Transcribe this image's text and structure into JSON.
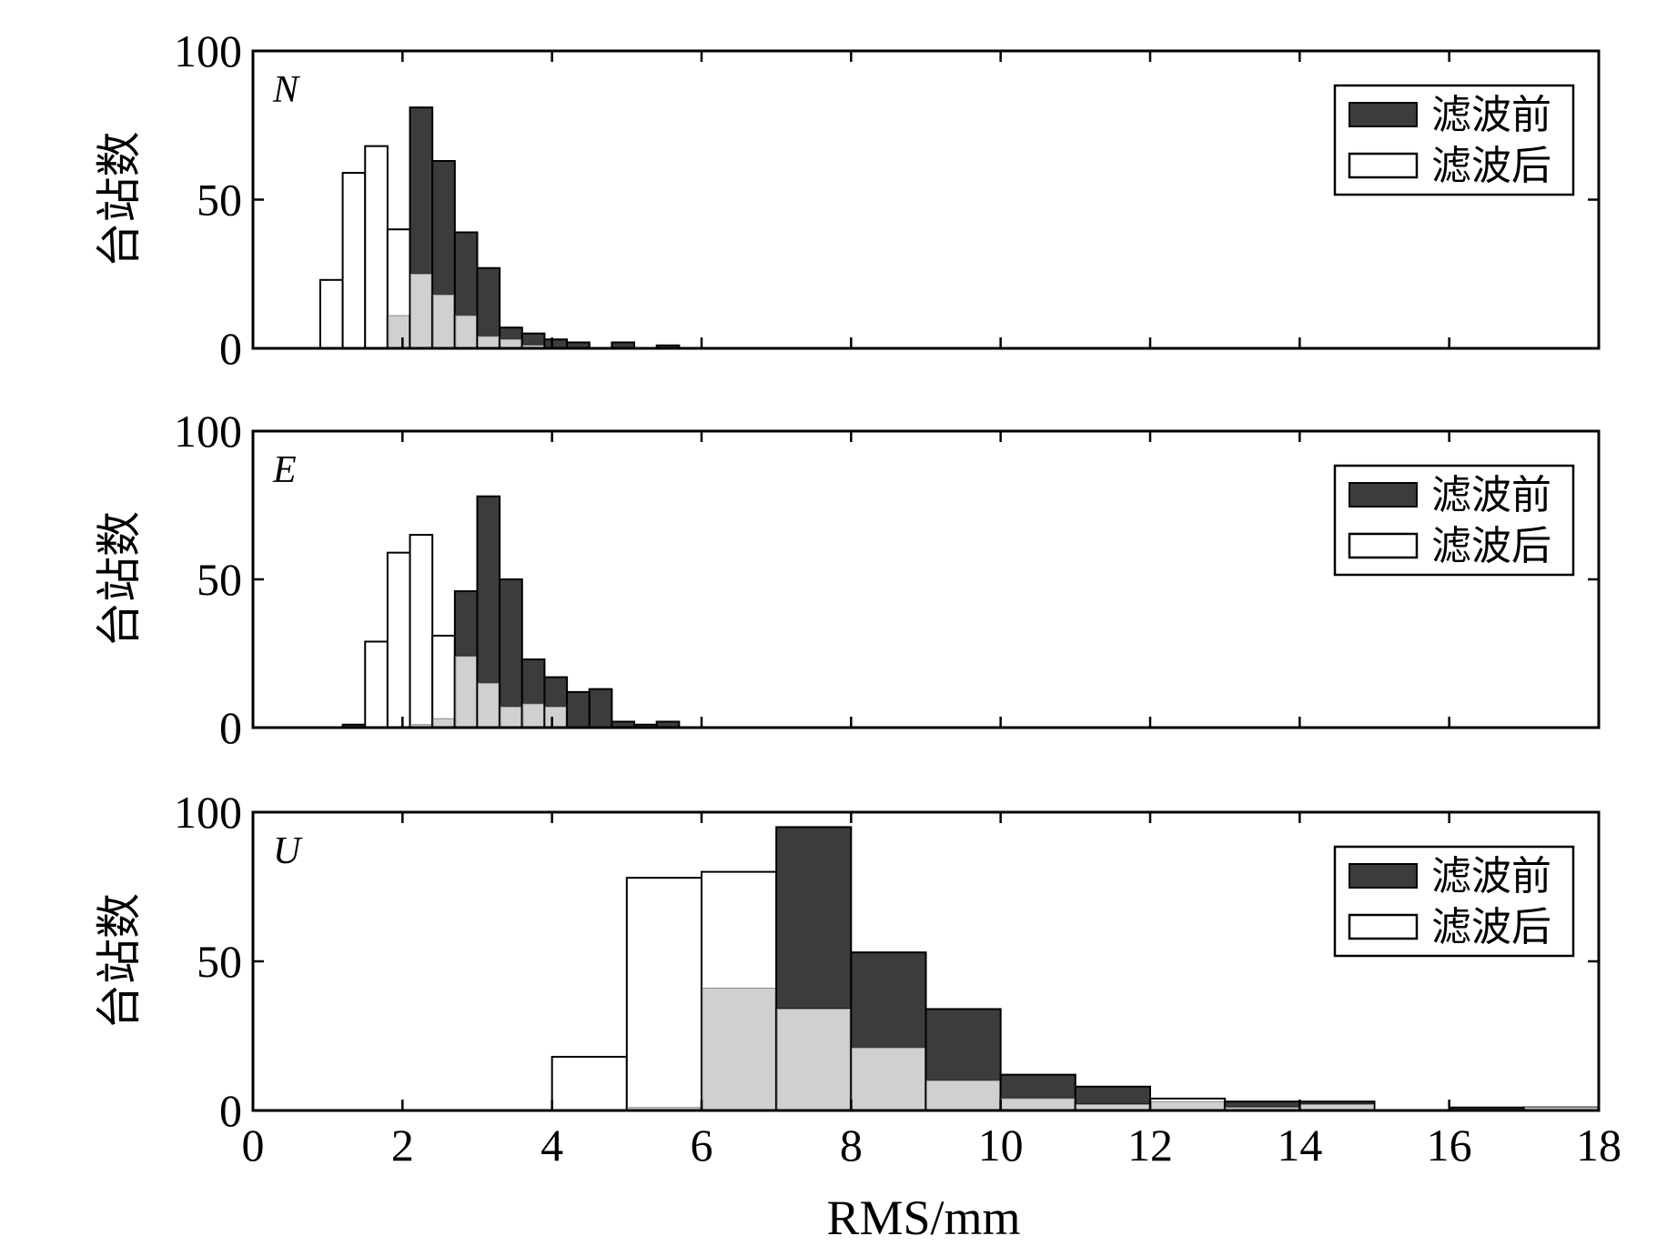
{
  "colors": {
    "before_fill": "#3c3c3c",
    "after_fill": "#ffffff",
    "overlap_fill": "#d0d0d0",
    "edge": "#000000"
  },
  "xlabel": "RMS/mm",
  "legend": {
    "before": "滤波前",
    "after": "滤波后",
    "placement": "top-right"
  },
  "chart_data": [
    {
      "type": "bar",
      "panel": "N",
      "ylabel": "台站数",
      "xlim": [
        0,
        18
      ],
      "ylim": [
        0,
        100
      ],
      "x_ticks": [
        0,
        2,
        4,
        6,
        8,
        10,
        12,
        14,
        16,
        18
      ],
      "y_ticks": [
        0,
        50,
        100
      ],
      "bin_width": 0.3,
      "bin_starts": [
        0.9,
        1.2,
        1.5,
        1.8,
        2.1,
        2.4,
        2.7,
        3.0,
        3.3,
        3.6,
        3.9,
        4.2,
        4.5,
        4.8,
        5.1,
        5.4,
        5.7
      ],
      "series": [
        {
          "name": "滤波前",
          "values": [
            0,
            0,
            0,
            11,
            81,
            63,
            39,
            27,
            7,
            5,
            3,
            2,
            0,
            2,
            0,
            1,
            0
          ]
        },
        {
          "name": "滤波后",
          "values": [
            23,
            59,
            68,
            40,
            25,
            18,
            11,
            4,
            3,
            1,
            0,
            0,
            0,
            0,
            0,
            0,
            0
          ]
        }
      ]
    },
    {
      "type": "bar",
      "panel": "E",
      "ylabel": "台站数",
      "xlim": [
        0,
        18
      ],
      "ylim": [
        0,
        100
      ],
      "x_ticks": [
        0,
        2,
        4,
        6,
        8,
        10,
        12,
        14,
        16,
        18
      ],
      "y_ticks": [
        0,
        50,
        100
      ],
      "bin_width": 0.3,
      "bin_starts": [
        1.2,
        1.5,
        1.8,
        2.1,
        2.4,
        2.7,
        3.0,
        3.3,
        3.6,
        3.9,
        4.2,
        4.5,
        4.8,
        5.1,
        5.4
      ],
      "series": [
        {
          "name": "滤波前",
          "values": [
            1,
            0,
            0,
            1,
            3,
            46,
            78,
            50,
            23,
            17,
            12,
            13,
            2,
            1,
            2
          ]
        },
        {
          "name": "滤波后",
          "values": [
            0,
            29,
            59,
            65,
            31,
            24,
            15,
            7,
            8,
            7,
            0,
            0,
            0,
            0,
            0
          ]
        }
      ]
    },
    {
      "type": "bar",
      "panel": "U",
      "ylabel": "台站数",
      "xlim": [
        0,
        18
      ],
      "ylim": [
        0,
        100
      ],
      "x_ticks": [
        0,
        2,
        4,
        6,
        8,
        10,
        12,
        14,
        16,
        18
      ],
      "y_ticks": [
        0,
        50,
        100
      ],
      "bin_width": 1,
      "bin_starts": [
        4,
        5,
        6,
        7,
        8,
        9,
        10,
        11,
        12,
        13,
        14,
        15,
        16,
        17
      ],
      "series": [
        {
          "name": "滤波前",
          "values": [
            0,
            1,
            41,
            95,
            53,
            34,
            12,
            8,
            3,
            3,
            3,
            0,
            1,
            1
          ]
        },
        {
          "name": "滤波后",
          "values": [
            18,
            78,
            80,
            34,
            21,
            10,
            4,
            2,
            4,
            1,
            2,
            0,
            0,
            1
          ]
        }
      ]
    }
  ]
}
